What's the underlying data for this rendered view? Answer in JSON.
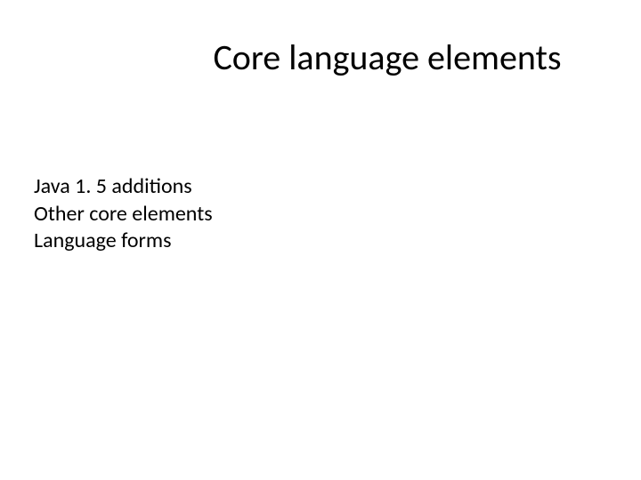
{
  "slide": {
    "title": "Core language elements",
    "items": [
      "Java 1. 5 additions",
      "Other core elements",
      "Language forms"
    ]
  },
  "style": {
    "background_color": "#ffffff",
    "text_color": "#000000",
    "title_fontsize": 40,
    "body_fontsize": 24,
    "font_family": "Calibri"
  }
}
